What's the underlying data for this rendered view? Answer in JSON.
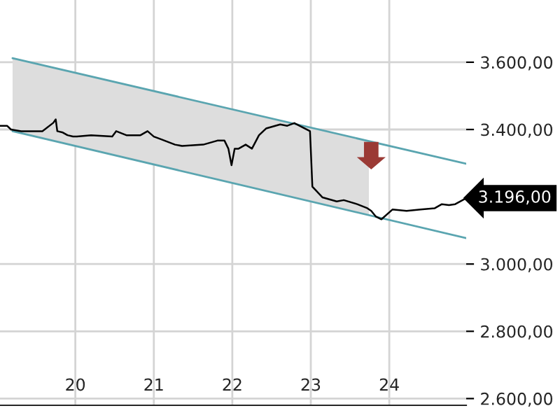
{
  "chart_data": {
    "type": "line",
    "xlim": [
      19.04,
      24.98
    ],
    "ylim": [
      2580,
      3785
    ],
    "xticks": [
      20,
      21,
      22,
      23,
      24
    ],
    "yticks": [
      {
        "value": 2600,
        "label": "2.600,00"
      },
      {
        "value": 2800,
        "label": "2.800,00"
      },
      {
        "value": 3000,
        "label": "3.000,00"
      },
      {
        "value": 3400,
        "label": "3.400,00"
      },
      {
        "value": 3600,
        "label": "3.600,00"
      }
    ],
    "grid": true,
    "marker": "none",
    "line_style": "solid",
    "series": [
      {
        "color": "#5aa5b0",
        "x": [
          19.2,
          24.98
        ],
        "values": [
          3612,
          3298
        ]
      },
      {
        "color": "#5aa5b0",
        "x": [
          19.2,
          24.98
        ],
        "values": [
          3395,
          3077
        ]
      },
      {
        "color": "#000000",
        "x": [
          19.04,
          19.13,
          19.18,
          19.31,
          19.58,
          19.72,
          19.75,
          19.77,
          19.84,
          19.9,
          19.97,
          20.02,
          20.2,
          20.47,
          20.52,
          20.65,
          20.83,
          20.92,
          21.0,
          21.09,
          21.27,
          21.36,
          21.63,
          21.81,
          21.9,
          21.95,
          21.99,
          22.03,
          22.08,
          22.17,
          22.25,
          22.34,
          22.43,
          22.61,
          22.7,
          22.79,
          22.99,
          23.02,
          23.15,
          23.33,
          23.42,
          23.59,
          23.72,
          23.77,
          23.83,
          23.9,
          24.04,
          24.22,
          24.4,
          24.58,
          24.67,
          24.76,
          24.84,
          24.98
        ],
        "values": [
          3411,
          3411,
          3400,
          3395,
          3395,
          3420,
          3430,
          3395,
          3391,
          3383,
          3379,
          3379,
          3383,
          3379,
          3395,
          3383,
          3383,
          3395,
          3379,
          3371,
          3355,
          3351,
          3355,
          3367,
          3367,
          3343,
          3294,
          3343,
          3343,
          3355,
          3343,
          3383,
          3403,
          3415,
          3411,
          3419,
          3395,
          3230,
          3198,
          3186,
          3190,
          3178,
          3166,
          3158,
          3141,
          3133,
          3162,
          3158,
          3162,
          3166,
          3178,
          3175,
          3178,
          3196
        ]
      }
    ],
    "bands": [
      {
        "axis": "x",
        "from": 19.2,
        "to": 23.74,
        "color": "#dddddd"
      }
    ],
    "annotations": [
      {
        "text": "3.196,00",
        "x": 24.98,
        "y": 3196
      }
    ]
  }
}
